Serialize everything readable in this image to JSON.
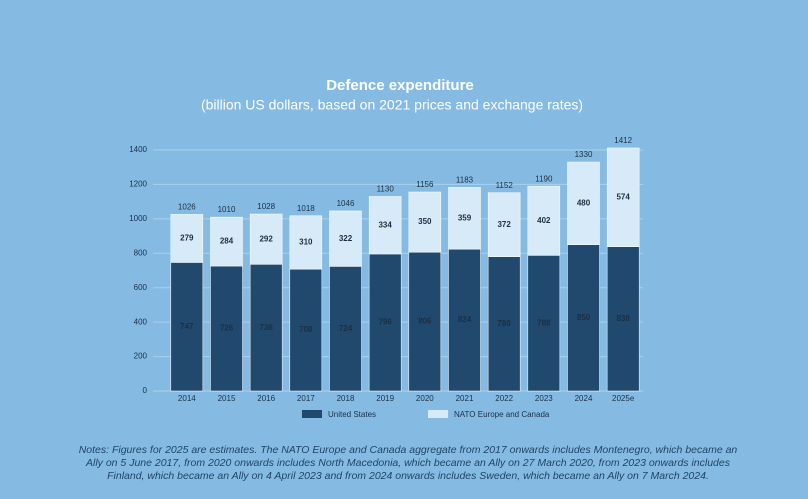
{
  "chart_data": {
    "type": "stacked_bar",
    "title": "Defence expenditure",
    "subtitle": "(billion US dollars, based on 2021 prices and exchange rates)",
    "categories": [
      "2014",
      "2015",
      "2016",
      "2017",
      "2018",
      "2019",
      "2020",
      "2021",
      "2022",
      "2023",
      "2024",
      "2025e"
    ],
    "series": [
      {
        "name": "United States",
        "color": "#21496d",
        "values": [
          747,
          726,
          736,
          708,
          724,
          796,
          806,
          824,
          780,
          788,
          850,
          838
        ]
      },
      {
        "name": "NATO Europe and Canada",
        "color": "#d6eaf8",
        "values": [
          279,
          284,
          292,
          310,
          322,
          334,
          350,
          359,
          372,
          402,
          480,
          574
        ]
      }
    ],
    "totals": [
      1026,
      1010,
      1028,
      1018,
      1046,
      1130,
      1156,
      1183,
      1152,
      1190,
      1330,
      1412
    ],
    "ylim": [
      0,
      1400
    ],
    "yticks": [
      0,
      200,
      400,
      600,
      800,
      1000,
      1200,
      1400
    ],
    "grid": true,
    "legend": "bottom",
    "notes": "Notes: Figures for 2025 are estimates. The NATO Europe and Canada aggregate from 2017 onwards includes Montenegro, which became an Ally on 5 June 2017, from 2020 onwards includes North Macedonia, which became an Ally on 27 March 2020, from 2023 onwards includes Finland, which became an Ally on 4 April 2023 and from 2024 onwards includes Sweden, which became an Ally on 7 March 2024."
  }
}
